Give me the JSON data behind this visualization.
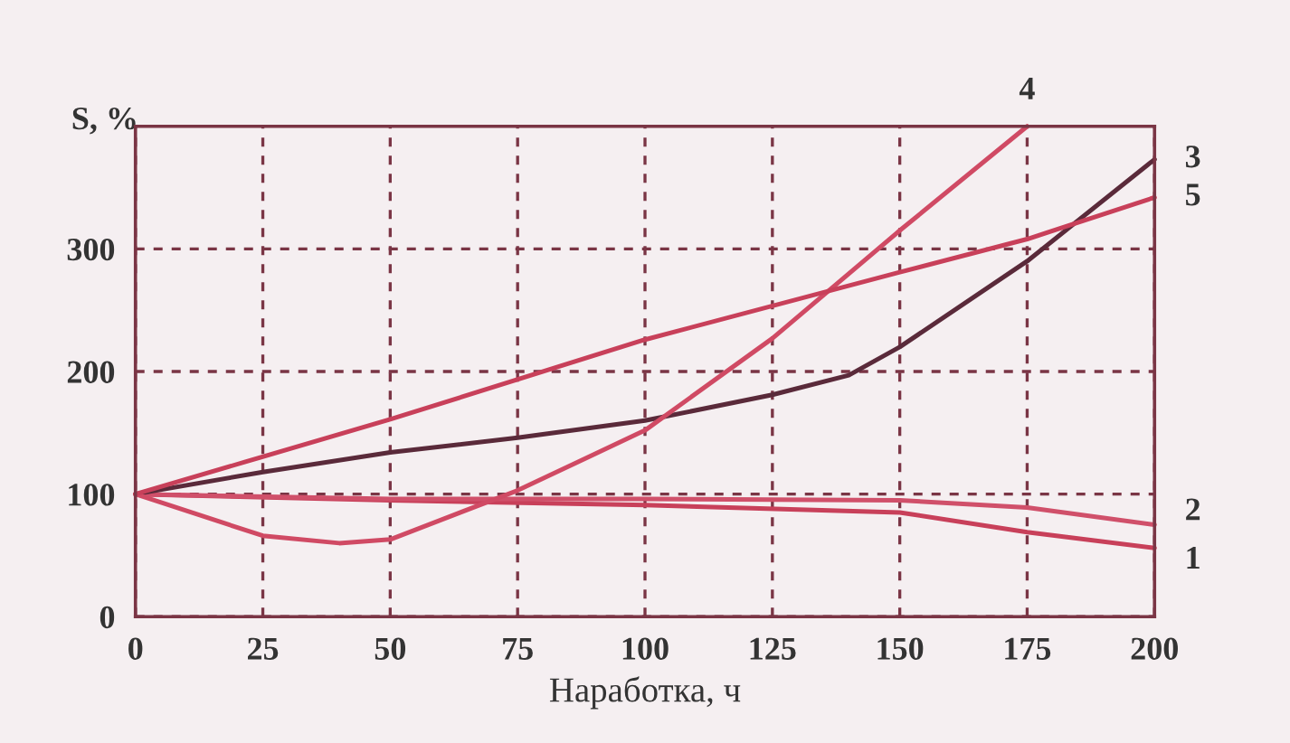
{
  "chart_data": {
    "type": "line",
    "xlabel": "Наработка, ч",
    "ylabel": "S, %",
    "xlim": [
      0,
      200
    ],
    "ylim": [
      0,
      400
    ],
    "xticks": [
      0,
      25,
      50,
      75,
      100,
      125,
      150,
      175,
      200
    ],
    "yticks": [
      0,
      100,
      200,
      300
    ],
    "grid": true,
    "marker": "none",
    "line_style": "solid",
    "series": [
      {
        "name": "1",
        "color": "#c8405a",
        "x": [
          0,
          50,
          100,
          150,
          175,
          200
        ],
        "values": [
          100,
          95,
          91,
          85,
          69,
          56
        ]
      },
      {
        "name": "2",
        "color": "#d0506a",
        "x": [
          0,
          50,
          100,
          150,
          175,
          200
        ],
        "values": [
          100,
          96,
          96,
          95,
          89,
          75
        ]
      },
      {
        "name": "3",
        "color": "#5a2a3a",
        "x": [
          0,
          25,
          50,
          75,
          100,
          125,
          140,
          150,
          175,
          200
        ],
        "values": [
          100,
          118,
          134,
          146,
          160,
          181,
          197,
          220,
          290,
          373
        ]
      },
      {
        "name": "4",
        "color": "#d04a64",
        "x": [
          0,
          25,
          40,
          50,
          60,
          75,
          100,
          125,
          150,
          175
        ],
        "values": [
          100,
          66,
          60,
          63,
          79,
          103,
          152,
          227,
          315,
          400
        ]
      },
      {
        "name": "5",
        "color": "#c8405a",
        "x": [
          0,
          50,
          100,
          150,
          175,
          200
        ],
        "values": [
          100,
          161,
          226,
          281,
          308,
          342
        ]
      }
    ]
  }
}
